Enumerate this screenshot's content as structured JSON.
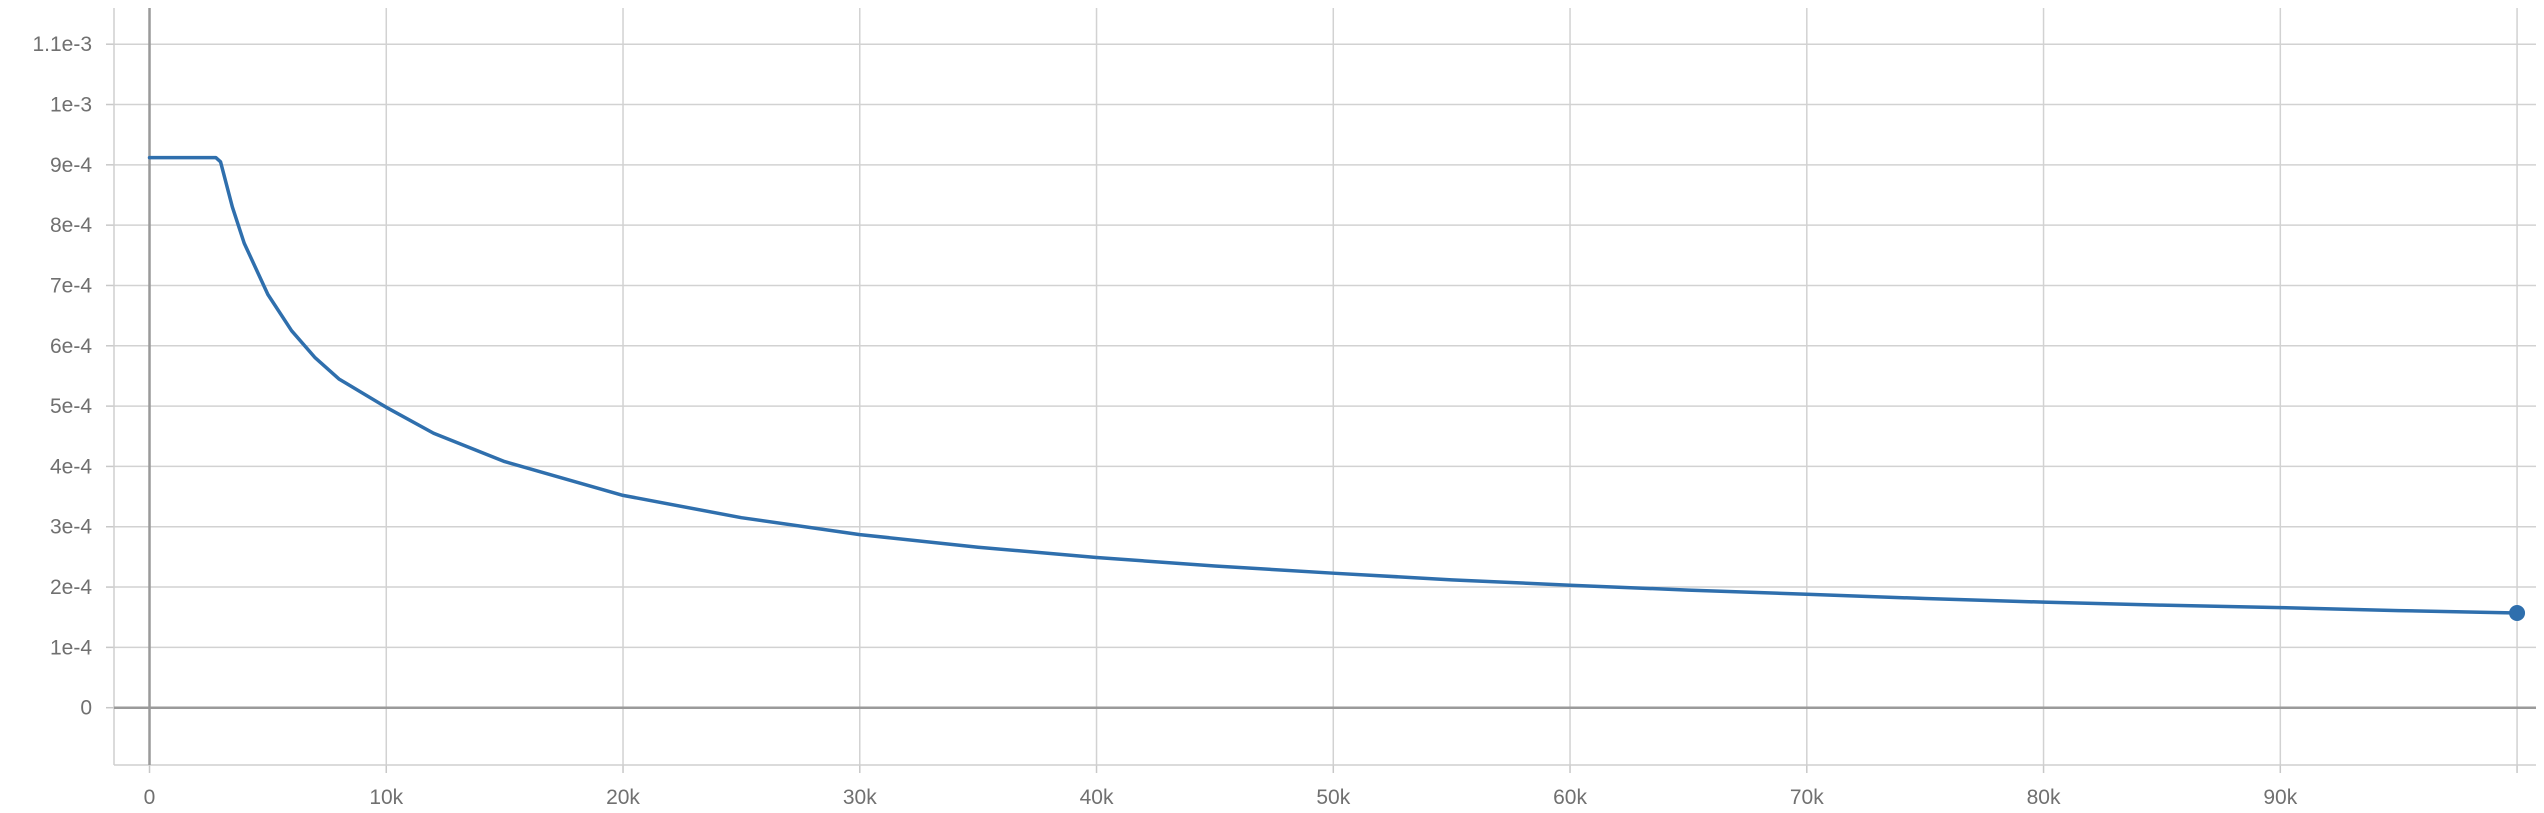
{
  "chart_data": {
    "type": "line",
    "title": "",
    "xlabel": "",
    "ylabel": "",
    "xlim": [
      -1500,
      100800
    ],
    "ylim": [
      -9.5e-05,
      0.00116
    ],
    "x_ticks": [
      {
        "value": 0,
        "label": "0"
      },
      {
        "value": 10000,
        "label": "10k"
      },
      {
        "value": 20000,
        "label": "20k"
      },
      {
        "value": 30000,
        "label": "30k"
      },
      {
        "value": 40000,
        "label": "40k"
      },
      {
        "value": 50000,
        "label": "50k"
      },
      {
        "value": 60000,
        "label": "60k"
      },
      {
        "value": 70000,
        "label": "70k"
      },
      {
        "value": 80000,
        "label": "80k"
      },
      {
        "value": 90000,
        "label": "90k"
      }
    ],
    "x_extra_gridlines": [
      100000
    ],
    "y_ticks": [
      {
        "value": 0,
        "label": "0"
      },
      {
        "value": 0.0001,
        "label": "1e-4"
      },
      {
        "value": 0.0002,
        "label": "2e-4"
      },
      {
        "value": 0.0003,
        "label": "3e-4"
      },
      {
        "value": 0.0004,
        "label": "4e-4"
      },
      {
        "value": 0.0005,
        "label": "5e-4"
      },
      {
        "value": 0.0006,
        "label": "6e-4"
      },
      {
        "value": 0.0007,
        "label": "7e-4"
      },
      {
        "value": 0.0008,
        "label": "8e-4"
      },
      {
        "value": 0.0009,
        "label": "9e-4"
      },
      {
        "value": 0.001,
        "label": "1e-3"
      },
      {
        "value": 0.0011,
        "label": "1.1e-3"
      }
    ],
    "grid": true,
    "series": [
      {
        "color": "#2f6fad",
        "end_marker": true,
        "points": [
          [
            0,
            0.000912
          ],
          [
            2000,
            0.000912
          ],
          [
            2800,
            0.000912
          ],
          [
            3000,
            0.000905
          ],
          [
            3500,
            0.00083
          ],
          [
            4000,
            0.00077
          ],
          [
            5000,
            0.000685
          ],
          [
            6000,
            0.000625
          ],
          [
            7000,
            0.00058
          ],
          [
            8000,
            0.000545
          ],
          [
            10000,
            0.000498
          ],
          [
            12000,
            0.000455
          ],
          [
            15000,
            0.000408
          ],
          [
            20000,
            0.000352
          ],
          [
            25000,
            0.000315
          ],
          [
            30000,
            0.000287
          ],
          [
            35000,
            0.000266
          ],
          [
            40000,
            0.000249
          ],
          [
            45000,
            0.000235
          ],
          [
            50000,
            0.000223
          ],
          [
            55000,
            0.000212
          ],
          [
            60000,
            0.000203
          ],
          [
            65000,
            0.000195
          ],
          [
            70000,
            0.000188
          ],
          [
            75000,
            0.000181
          ],
          [
            80000,
            0.000175
          ],
          [
            85000,
            0.00017
          ],
          [
            90000,
            0.000166
          ],
          [
            95000,
            0.000161
          ],
          [
            100000,
            0.000157
          ]
        ]
      }
    ]
  }
}
